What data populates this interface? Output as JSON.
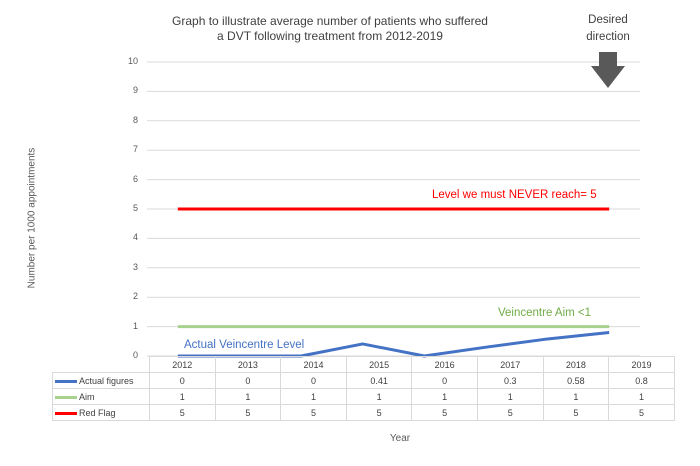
{
  "chart_data": {
    "type": "line",
    "title_line1": "Graph to illustrate average number of patients who suffered",
    "title_line2": "a DVT following treatment from 2012-2019",
    "xlabel": "Year",
    "ylabel": "Number per 1000 appointments",
    "ylim": [
      0,
      10
    ],
    "yticks": [
      "0",
      "1",
      "2",
      "3",
      "4",
      "5",
      "6",
      "7",
      "8",
      "9",
      "10"
    ],
    "categories": [
      "2012",
      "2013",
      "2014",
      "2015",
      "2016",
      "2017",
      "2018",
      "2019"
    ],
    "grid": true,
    "legend_placement": "data table",
    "series": [
      {
        "name": "Actual figures",
        "values": [
          0,
          0,
          0,
          0.41,
          0,
          0.3,
          0.58,
          0.8
        ],
        "labels": [
          "0",
          "0",
          "0",
          "0.41",
          "0",
          "0.3",
          "0.58",
          "0.8"
        ],
        "color": "#4472c4"
      },
      {
        "name": "Aim",
        "values": [
          1,
          1,
          1,
          1,
          1,
          1,
          1,
          1
        ],
        "labels": [
          "1",
          "1",
          "1",
          "1",
          "1",
          "1",
          "1",
          "1"
        ],
        "color": "#a9d18e"
      },
      {
        "name": "Red Flag",
        "values": [
          5,
          5,
          5,
          5,
          5,
          5,
          5,
          5
        ],
        "labels": [
          "5",
          "5",
          "5",
          "5",
          "5",
          "5",
          "5",
          "5"
        ],
        "color": "#ff0000"
      }
    ],
    "annotations": {
      "red_flag": "Level we must NEVER reach= 5",
      "aim": "Veincentre Aim <1",
      "actual": "Actual Veincentre Level"
    },
    "direction": {
      "line1": "Desired",
      "line2": "direction",
      "icon": "down-arrow-icon",
      "color": "#595959"
    }
  }
}
